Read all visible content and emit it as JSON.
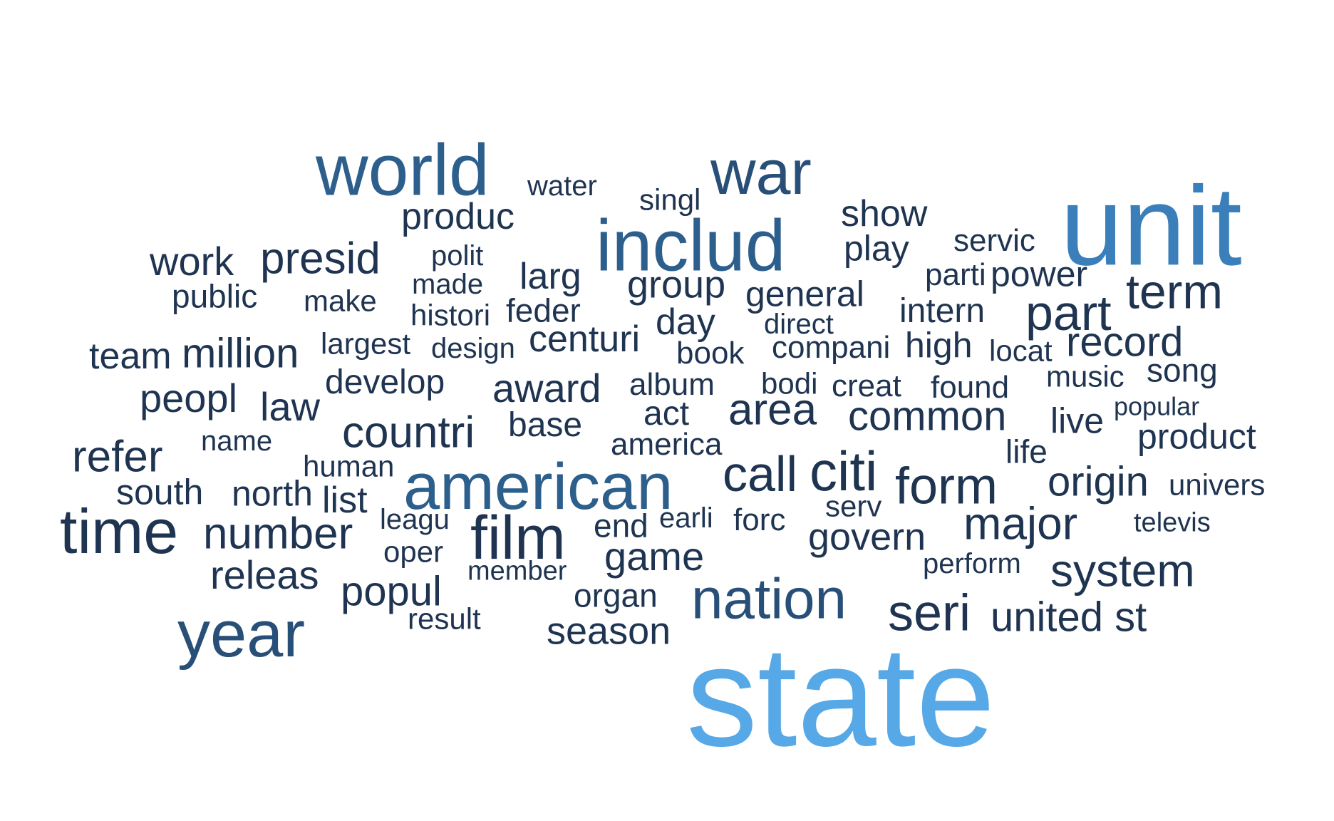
{
  "colors": {
    "background": "#ffffff",
    "ramp": [
      "#1f3451",
      "#274f78",
      "#2d5f8c",
      "#3a7fba",
      "#56a8e6"
    ]
  },
  "words": [
    {
      "text": "state",
      "level": 4
    },
    {
      "text": "unit",
      "level": 3
    },
    {
      "text": "includ",
      "level": 2
    },
    {
      "text": "american",
      "level": 2
    },
    {
      "text": "world",
      "level": 2
    },
    {
      "text": "war",
      "level": 1
    },
    {
      "text": "nation",
      "level": 1
    },
    {
      "text": "year",
      "level": 1
    },
    {
      "text": "time",
      "level": 0
    },
    {
      "text": "seri",
      "level": 0
    },
    {
      "text": "film",
      "level": 0
    },
    {
      "text": "citi",
      "level": 0
    },
    {
      "text": "call",
      "level": 0
    },
    {
      "text": "form",
      "level": 0
    },
    {
      "text": "presid",
      "level": 0
    },
    {
      "text": "part",
      "level": 0
    },
    {
      "text": "term",
      "level": 0
    },
    {
      "text": "system",
      "level": 0
    },
    {
      "text": "major",
      "level": 0
    },
    {
      "text": "number",
      "level": 0
    },
    {
      "text": "countri",
      "level": 0
    },
    {
      "text": "area",
      "level": 0
    },
    {
      "text": "million",
      "level": 0
    },
    {
      "text": "refer",
      "level": 0
    },
    {
      "text": "common",
      "level": 0
    },
    {
      "text": "origin",
      "level": 0
    },
    {
      "text": "record",
      "level": 0
    },
    {
      "text": "game",
      "level": 0
    },
    {
      "text": "popul",
      "level": 0
    },
    {
      "text": "releas",
      "level": 0
    },
    {
      "text": "united st",
      "level": 0
    },
    {
      "text": "award",
      "level": 0
    },
    {
      "text": "group",
      "level": 0
    },
    {
      "text": "show",
      "level": 0
    },
    {
      "text": "produc",
      "level": 0
    },
    {
      "text": "work",
      "level": 0
    },
    {
      "text": "govern",
      "level": 0
    },
    {
      "text": "season",
      "level": 0
    },
    {
      "text": "peopl",
      "level": 0
    },
    {
      "text": "larg",
      "level": 0
    },
    {
      "text": "general",
      "level": 0
    },
    {
      "text": "power",
      "level": 0
    },
    {
      "text": "play",
      "level": 0
    },
    {
      "text": "law",
      "level": 0
    },
    {
      "text": "day",
      "level": 0
    },
    {
      "text": "centuri",
      "level": 0
    },
    {
      "text": "develop",
      "level": 0
    },
    {
      "text": "intern",
      "level": 0
    },
    {
      "text": "high",
      "level": 0
    },
    {
      "text": "product",
      "level": 0
    },
    {
      "text": "south",
      "level": 0
    },
    {
      "text": "north",
      "level": 0
    },
    {
      "text": "team",
      "level": 0
    },
    {
      "text": "live",
      "level": 0
    },
    {
      "text": "song",
      "level": 0
    },
    {
      "text": "base",
      "level": 0
    },
    {
      "text": "feder",
      "level": 0
    },
    {
      "text": "creat",
      "level": 0
    },
    {
      "text": "found",
      "level": 0
    },
    {
      "text": "servic",
      "level": 0
    },
    {
      "text": "list",
      "level": 0
    },
    {
      "text": "organ",
      "level": 0
    },
    {
      "text": "act",
      "level": 0
    },
    {
      "text": "music",
      "level": 0
    },
    {
      "text": "america",
      "level": 0
    },
    {
      "text": "forc",
      "level": 0
    },
    {
      "text": "album",
      "level": 0
    },
    {
      "text": "compani",
      "level": 0
    },
    {
      "text": "public",
      "level": 0
    },
    {
      "text": "made",
      "level": 0
    },
    {
      "text": "make",
      "level": 0
    },
    {
      "text": "water",
      "level": 0
    },
    {
      "text": "singl",
      "level": 0
    },
    {
      "text": "end",
      "level": 0
    },
    {
      "text": "histori",
      "level": 0
    },
    {
      "text": "largest",
      "level": 0
    },
    {
      "text": "univers",
      "level": 0
    },
    {
      "text": "locat",
      "level": 0
    },
    {
      "text": "bodi",
      "level": 0
    },
    {
      "text": "human",
      "level": 0
    },
    {
      "text": "direct",
      "level": 0
    },
    {
      "text": "result",
      "level": 0
    },
    {
      "text": "serv",
      "level": 0
    },
    {
      "text": "oper",
      "level": 0
    },
    {
      "text": "leagu",
      "level": 0
    },
    {
      "text": "book",
      "level": 0
    },
    {
      "text": "design",
      "level": 0
    },
    {
      "text": "parti",
      "level": 0
    },
    {
      "text": "polit",
      "level": 0
    },
    {
      "text": "life",
      "level": 0
    },
    {
      "text": "earli",
      "level": 0
    },
    {
      "text": "perform",
      "level": 0
    },
    {
      "text": "member",
      "level": 0
    },
    {
      "text": "name",
      "level": 0
    },
    {
      "text": "popular",
      "level": 0
    },
    {
      "text": "televis",
      "level": 0
    }
  ]
}
